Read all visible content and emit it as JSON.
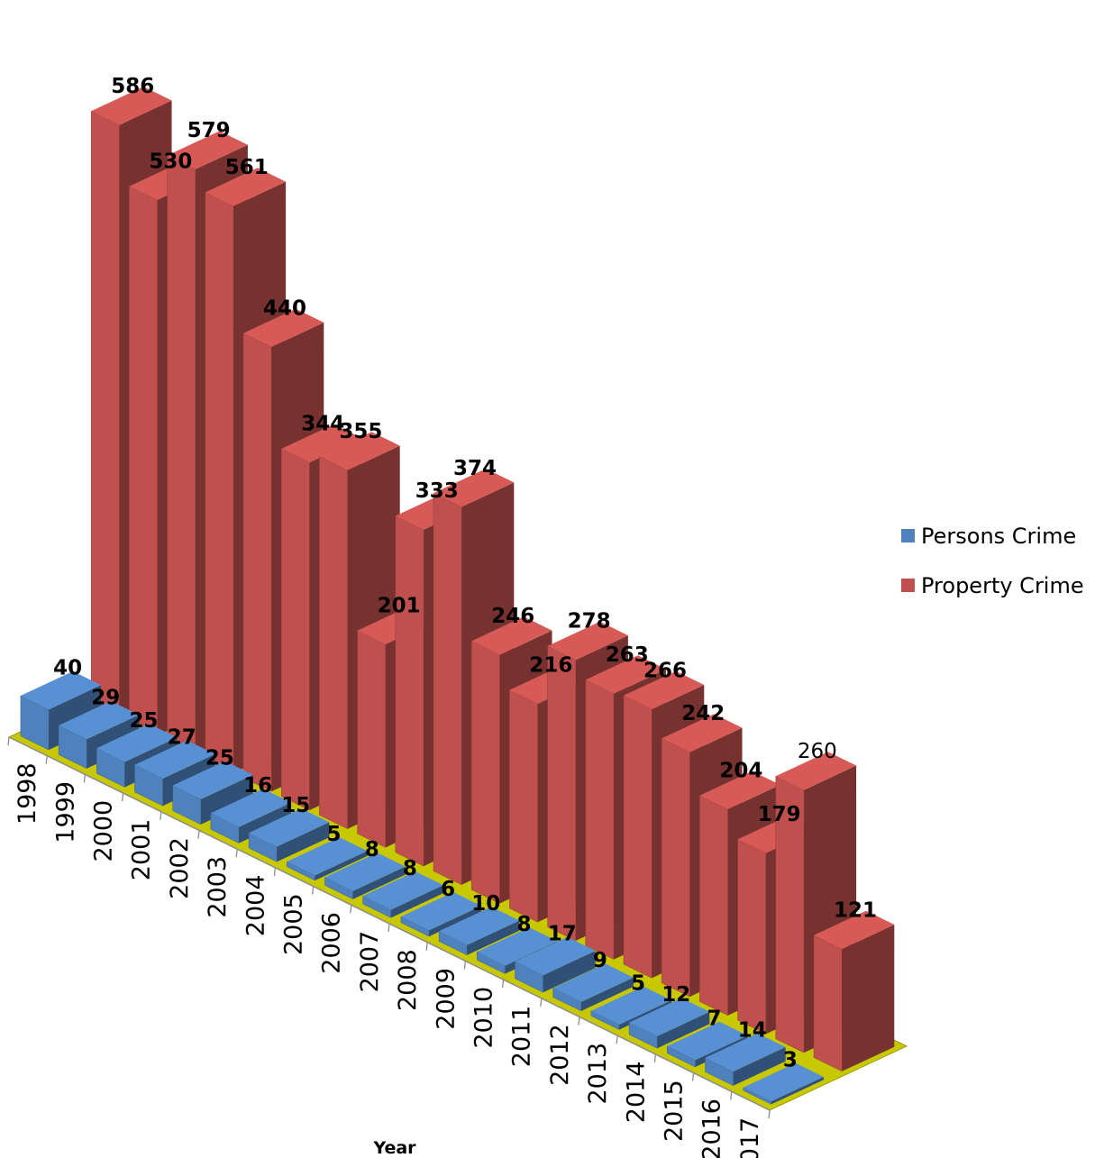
{
  "chart_data": {
    "type": "bar",
    "title": "",
    "xlabel": "Year",
    "ylabel": "",
    "categories": [
      "1998",
      "1999",
      "2000",
      "2001",
      "2002",
      "2003",
      "2004",
      "2005",
      "2006",
      "2007",
      "2008",
      "2009",
      "2010",
      "2011",
      "2012",
      "2013",
      "2014",
      "2015",
      "2016",
      "2017"
    ],
    "series": [
      {
        "name": "Persons Crime",
        "color": "#4f81bd",
        "values": [
          40,
          29,
          25,
          27,
          25,
          16,
          15,
          5,
          8,
          8,
          6,
          10,
          8,
          17,
          9,
          5,
          12,
          7,
          14,
          3
        ]
      },
      {
        "name": "Property Crime",
        "color": "#c0504d",
        "values": [
          586,
          530,
          579,
          561,
          440,
          344,
          355,
          201,
          333,
          374,
          246,
          216,
          278,
          263,
          266,
          242,
          204,
          179,
          260,
          121
        ]
      }
    ],
    "style": "3d-clustered-columns",
    "floor_color": "#c8c800",
    "legend": "right"
  }
}
